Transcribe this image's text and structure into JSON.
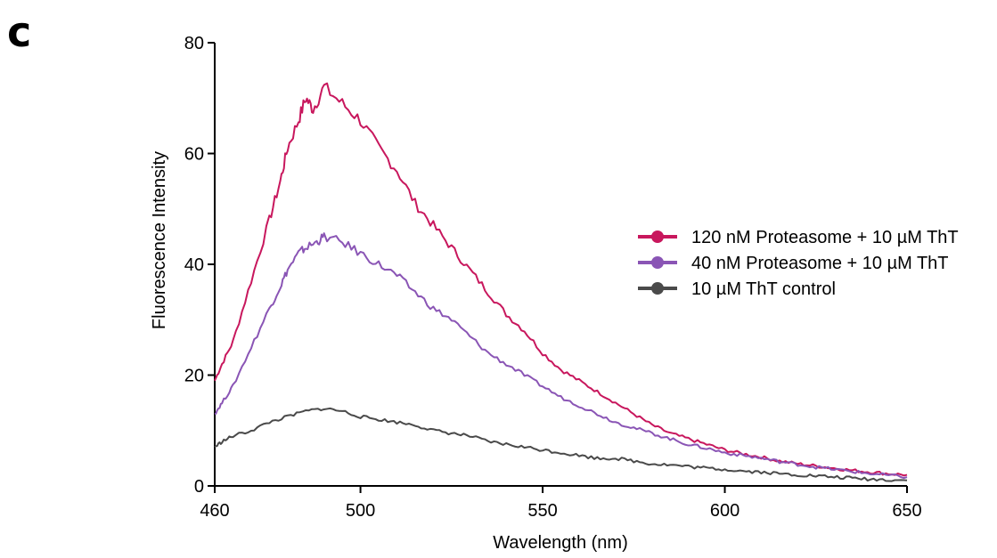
{
  "panel_label": "c",
  "chart_data": {
    "type": "line",
    "title": "",
    "xlabel": "Wavelength (nm)",
    "ylabel": "Fluorescence Intensity",
    "xlim": [
      460,
      650
    ],
    "ylim": [
      0,
      80
    ],
    "x_ticks": [
      460,
      500,
      550,
      600,
      650
    ],
    "y_ticks": [
      0,
      20,
      40,
      60,
      80
    ],
    "legend_position": "right",
    "series": [
      {
        "name": "120 nM Proteasome + 10 µM ThT",
        "color": "#c8175d",
        "points": [
          [
            460,
            19
          ],
          [
            462,
            22
          ],
          [
            465,
            26
          ],
          [
            470,
            37
          ],
          [
            475,
            48
          ],
          [
            478,
            55
          ],
          [
            480,
            61
          ],
          [
            483,
            66
          ],
          [
            485,
            70
          ],
          [
            487,
            68
          ],
          [
            490,
            72
          ],
          [
            495,
            69
          ],
          [
            500,
            66
          ],
          [
            505,
            61
          ],
          [
            510,
            57
          ],
          [
            515,
            51
          ],
          [
            520,
            47
          ],
          [
            525,
            43
          ],
          [
            530,
            39
          ],
          [
            535,
            35
          ],
          [
            540,
            31
          ],
          [
            545,
            28
          ],
          [
            550,
            24
          ],
          [
            555,
            21
          ],
          [
            560,
            19
          ],
          [
            565,
            17
          ],
          [
            570,
            15
          ],
          [
            575,
            13
          ],
          [
            580,
            11
          ],
          [
            585,
            9.5
          ],
          [
            590,
            8.5
          ],
          [
            595,
            7.5
          ],
          [
            600,
            6.5
          ],
          [
            605,
            5.8
          ],
          [
            610,
            5.2
          ],
          [
            615,
            4.5
          ],
          [
            620,
            4
          ],
          [
            625,
            3.6
          ],
          [
            630,
            3.2
          ],
          [
            635,
            2.8
          ],
          [
            640,
            2.5
          ],
          [
            645,
            2.2
          ],
          [
            650,
            2
          ]
        ]
      },
      {
        "name": "40 nM Proteasome + 10 µM ThT",
        "color": "#8a55b5",
        "points": [
          [
            460,
            13
          ],
          [
            462,
            15
          ],
          [
            465,
            18
          ],
          [
            470,
            25
          ],
          [
            475,
            32
          ],
          [
            478,
            36
          ],
          [
            480,
            39
          ],
          [
            483,
            42
          ],
          [
            485,
            43
          ],
          [
            488,
            44
          ],
          [
            490,
            45
          ],
          [
            495,
            44
          ],
          [
            500,
            42
          ],
          [
            505,
            40
          ],
          [
            510,
            38
          ],
          [
            515,
            35
          ],
          [
            520,
            32
          ],
          [
            525,
            30
          ],
          [
            530,
            27
          ],
          [
            535,
            24
          ],
          [
            540,
            22
          ],
          [
            545,
            20
          ],
          [
            550,
            18
          ],
          [
            555,
            16
          ],
          [
            560,
            14.5
          ],
          [
            565,
            13
          ],
          [
            570,
            11.5
          ],
          [
            575,
            10.5
          ],
          [
            580,
            9.5
          ],
          [
            585,
            8.5
          ],
          [
            590,
            7.5
          ],
          [
            595,
            6.8
          ],
          [
            600,
            6
          ],
          [
            605,
            5.5
          ],
          [
            610,
            5
          ],
          [
            615,
            4.4
          ],
          [
            620,
            3.9
          ],
          [
            625,
            3.4
          ],
          [
            630,
            3
          ],
          [
            635,
            2.6
          ],
          [
            640,
            2.2
          ],
          [
            645,
            1.9
          ],
          [
            650,
            1.6
          ]
        ]
      },
      {
        "name": "10 µM ThT control",
        "color": "#4a4a4a",
        "points": [
          [
            460,
            7
          ],
          [
            462,
            8
          ],
          [
            465,
            9
          ],
          [
            470,
            10
          ],
          [
            475,
            11.5
          ],
          [
            480,
            12.5
          ],
          [
            485,
            13.5
          ],
          [
            490,
            14
          ],
          [
            495,
            13.5
          ],
          [
            500,
            12.5
          ],
          [
            505,
            12
          ],
          [
            510,
            11.5
          ],
          [
            515,
            11
          ],
          [
            520,
            10
          ],
          [
            525,
            9.5
          ],
          [
            530,
            9
          ],
          [
            535,
            8
          ],
          [
            540,
            7.5
          ],
          [
            545,
            7
          ],
          [
            550,
            6.5
          ],
          [
            555,
            6
          ],
          [
            560,
            5.5
          ],
          [
            565,
            5
          ],
          [
            570,
            5
          ],
          [
            575,
            4.5
          ],
          [
            580,
            4
          ],
          [
            585,
            3.8
          ],
          [
            590,
            3.5
          ],
          [
            595,
            3.2
          ],
          [
            600,
            3
          ],
          [
            605,
            2.7
          ],
          [
            610,
            2.5
          ],
          [
            615,
            2.2
          ],
          [
            620,
            2
          ],
          [
            625,
            1.8
          ],
          [
            630,
            1.6
          ],
          [
            635,
            1.4
          ],
          [
            640,
            1.2
          ],
          [
            645,
            1.1
          ],
          [
            650,
            1
          ]
        ]
      }
    ]
  }
}
